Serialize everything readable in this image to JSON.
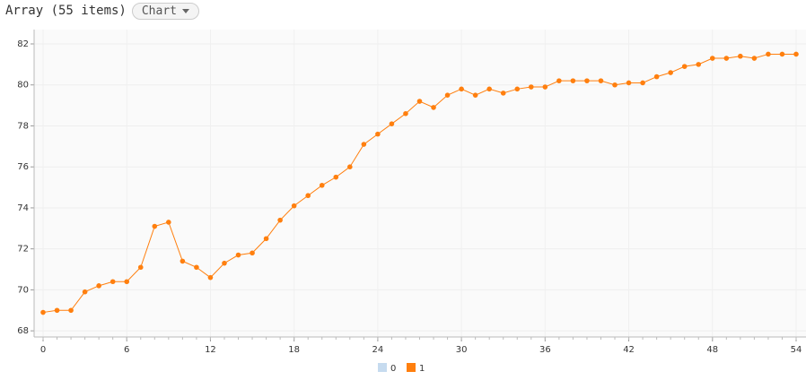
{
  "header": {
    "title": "Array (55 items)",
    "view_button": "Chart"
  },
  "chart_data": {
    "type": "line",
    "x": [
      0,
      1,
      2,
      3,
      4,
      5,
      6,
      7,
      8,
      9,
      10,
      11,
      12,
      13,
      14,
      15,
      16,
      17,
      18,
      19,
      20,
      21,
      22,
      23,
      24,
      25,
      26,
      27,
      28,
      29,
      30,
      31,
      32,
      33,
      34,
      35,
      36,
      37,
      38,
      39,
      40,
      41,
      42,
      43,
      44,
      45,
      46,
      47,
      48,
      49,
      50,
      51,
      52,
      53,
      54
    ],
    "series": [
      {
        "name": "1",
        "color": "#ff7f0e",
        "values": [
          68.9,
          69.0,
          69.0,
          69.9,
          70.2,
          70.4,
          70.4,
          71.1,
          73.1,
          73.3,
          71.4,
          71.1,
          70.6,
          71.3,
          71.7,
          71.8,
          72.5,
          73.4,
          74.1,
          74.6,
          75.1,
          75.5,
          76.0,
          77.1,
          77.6,
          78.1,
          78.6,
          79.2,
          78.9,
          79.5,
          79.8,
          79.5,
          79.8,
          79.6,
          79.8,
          79.9,
          79.9,
          80.2,
          80.2,
          80.2,
          80.2,
          80.0,
          80.1,
          80.1,
          80.4,
          80.6,
          80.9,
          81.0,
          81.3,
          81.3,
          81.4,
          81.3,
          81.5,
          81.5,
          81.5
        ]
      }
    ],
    "hidden_series": [
      {
        "name": "0",
        "color": "#c6dbef"
      }
    ],
    "xlim": [
      0,
      54
    ],
    "xticks": [
      0,
      6,
      12,
      18,
      24,
      30,
      36,
      42,
      48,
      54
    ],
    "ylim": [
      67.7,
      82.7
    ],
    "yticks": [
      68,
      70,
      72,
      74,
      76,
      78,
      80,
      82
    ],
    "grid": true
  }
}
